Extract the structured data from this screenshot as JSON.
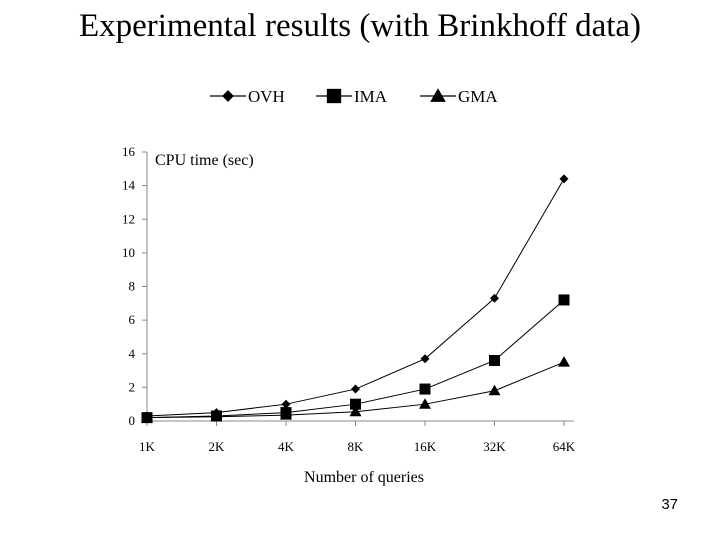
{
  "slide": {
    "title": "Experimental results (with Brinkhoff data)",
    "page_number": "37"
  },
  "chart_data": {
    "type": "line",
    "title": "",
    "ylabel": "CPU time (sec)",
    "xlabel": "Number of queries",
    "categories": [
      "1K",
      "2K",
      "4K",
      "8K",
      "16K",
      "32K",
      "64K"
    ],
    "ylim": [
      0,
      16
    ],
    "yticks": [
      0,
      2,
      4,
      6,
      8,
      10,
      12,
      14,
      16
    ],
    "grid": false,
    "legend_position": "top",
    "series": [
      {
        "name": "OVH",
        "marker": "diamond",
        "values": [
          0.3,
          0.5,
          1.0,
          1.9,
          3.7,
          7.3,
          14.4
        ]
      },
      {
        "name": "IMA",
        "marker": "square",
        "values": [
          0.2,
          0.3,
          0.5,
          1.0,
          1.9,
          3.6,
          7.2
        ]
      },
      {
        "name": "GMA",
        "marker": "triangle",
        "values": [
          0.2,
          0.25,
          0.35,
          0.55,
          1.0,
          1.8,
          3.5
        ]
      }
    ],
    "line_color": "#000000"
  }
}
